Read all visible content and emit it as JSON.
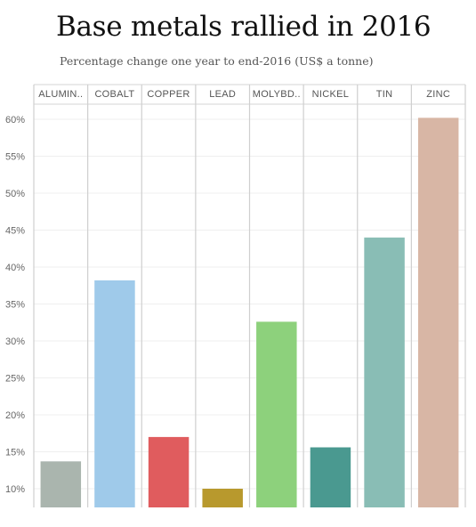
{
  "title": "Base metals rallied in 2016",
  "subtitle": "Percentage change one year to end-2016  (US$ a tonne)",
  "chart_data": {
    "type": "bar",
    "categories": [
      "ALUMIN..",
      "COBALT",
      "COPPER",
      "LEAD",
      "MOLYBD..",
      "NICKEL",
      "TIN",
      "ZINC"
    ],
    "values": [
      13.7,
      38.2,
      17.0,
      10.0,
      32.6,
      15.6,
      44.0,
      60.2
    ],
    "colors": [
      "#aab5ae",
      "#9fcaea",
      "#e05c5e",
      "#b8992d",
      "#8dd17c",
      "#4a9990",
      "#89bdb5",
      "#d8b6a5"
    ],
    "yticks": [
      10,
      15,
      20,
      25,
      30,
      35,
      40,
      45,
      50,
      55,
      60
    ],
    "ytick_format": "%",
    "ylim": [
      7.5,
      62.5
    ],
    "grid": true
  }
}
